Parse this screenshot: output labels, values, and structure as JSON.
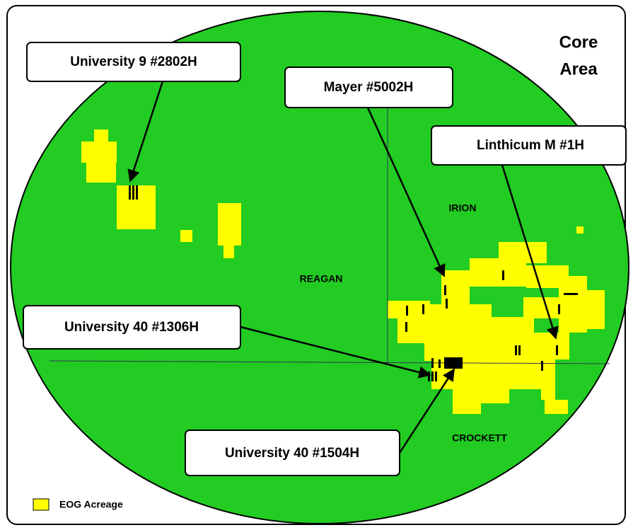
{
  "title_lines": [
    "Core",
    "Area"
  ],
  "callouts": [
    {
      "label": "University 9 #2802H"
    },
    {
      "label": "Mayer #5002H"
    },
    {
      "label": "Linthicum M #1H"
    },
    {
      "label": "University 40 #1306H"
    },
    {
      "label": "University 40 #1504H"
    }
  ],
  "counties": [
    "IRION",
    "REAGAN",
    "CROCKETT"
  ],
  "legend": {
    "label": "EOG Acreage"
  }
}
